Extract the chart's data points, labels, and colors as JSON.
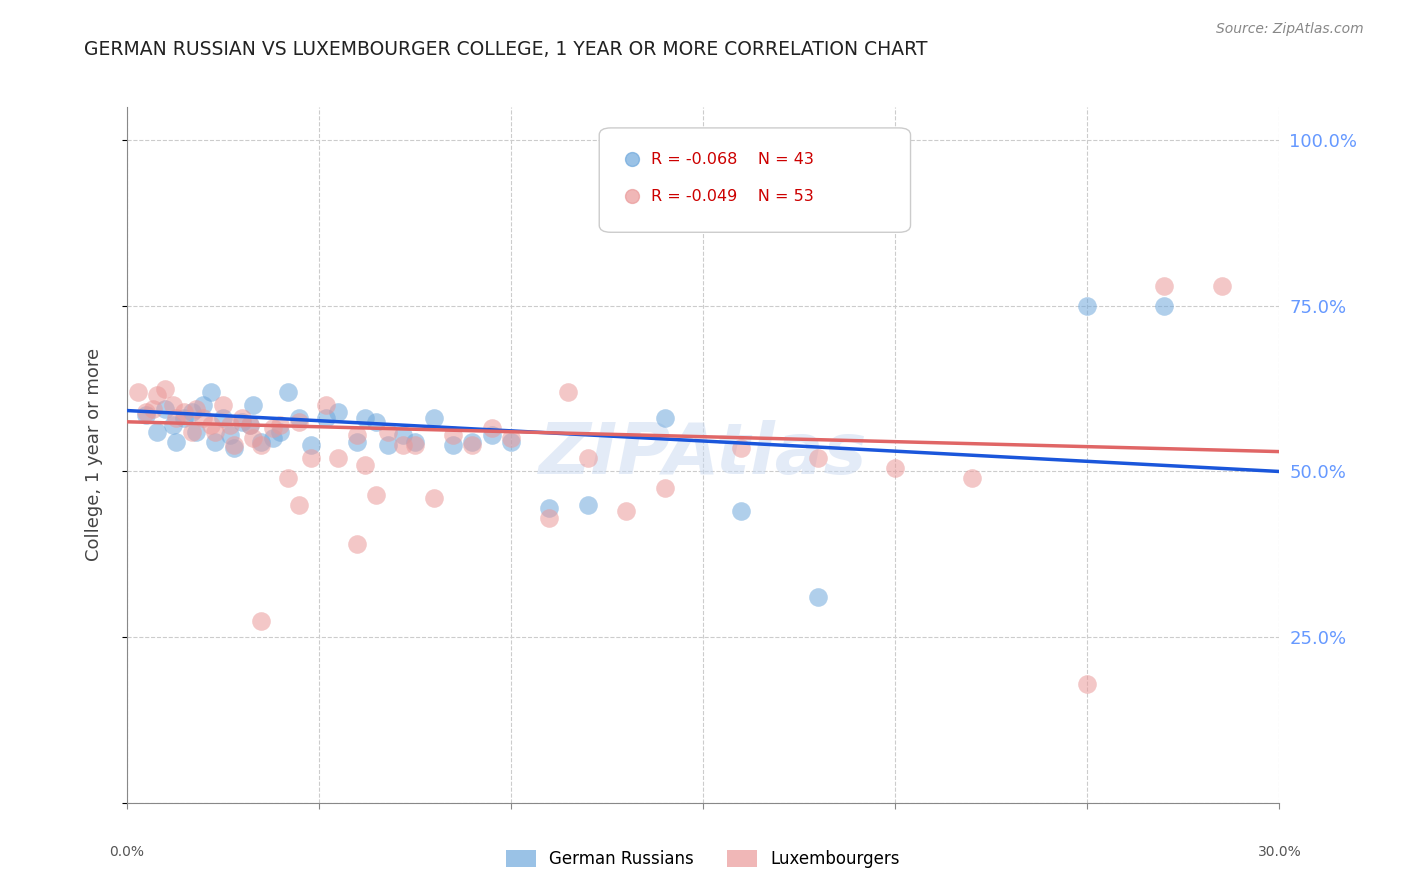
{
  "title": "GERMAN RUSSIAN VS LUXEMBOURGER COLLEGE, 1 YEAR OR MORE CORRELATION CHART",
  "source": "Source: ZipAtlas.com",
  "ylabel": "College, 1 year or more",
  "xmin": 0.0,
  "xmax": 0.3,
  "ymin": 0.0,
  "ymax": 1.05,
  "ytick_labels": [
    "",
    "25.0%",
    "50.0%",
    "75.0%",
    "100.0%"
  ],
  "ytick_values": [
    0.0,
    0.25,
    0.5,
    0.75,
    1.0
  ],
  "xtick_labels": [
    "0.0%",
    "",
    "",
    "",
    "",
    "",
    "30.0%"
  ],
  "xtick_values": [
    0.0,
    0.05,
    0.1,
    0.15,
    0.2,
    0.25,
    0.3
  ],
  "legend_blue_label": "German Russians",
  "legend_pink_label": "Luxembourgers",
  "legend_blue_R": "R = -0.068",
  "legend_blue_N": "N = 43",
  "legend_pink_R": "R = -0.049",
  "legend_pink_N": "N = 53",
  "watermark": "ZIPAtlas",
  "blue_scatter_x": [
    0.005,
    0.008,
    0.01,
    0.012,
    0.013,
    0.015,
    0.017,
    0.018,
    0.02,
    0.022,
    0.023,
    0.025,
    0.027,
    0.028,
    0.03,
    0.032,
    0.033,
    0.035,
    0.038,
    0.04,
    0.042,
    0.045,
    0.048,
    0.052,
    0.055,
    0.06,
    0.062,
    0.065,
    0.068,
    0.072,
    0.075,
    0.08,
    0.085,
    0.09,
    0.095,
    0.1,
    0.11,
    0.12,
    0.14,
    0.16,
    0.18,
    0.25,
    0.27
  ],
  "blue_scatter_y": [
    0.585,
    0.56,
    0.595,
    0.57,
    0.545,
    0.58,
    0.59,
    0.56,
    0.6,
    0.62,
    0.545,
    0.58,
    0.555,
    0.535,
    0.575,
    0.57,
    0.6,
    0.545,
    0.55,
    0.56,
    0.62,
    0.58,
    0.54,
    0.58,
    0.59,
    0.545,
    0.58,
    0.575,
    0.54,
    0.555,
    0.545,
    0.58,
    0.54,
    0.545,
    0.555,
    0.545,
    0.445,
    0.45,
    0.58,
    0.44,
    0.31,
    0.75,
    0.75
  ],
  "pink_scatter_x": [
    0.003,
    0.005,
    0.007,
    0.008,
    0.01,
    0.012,
    0.013,
    0.015,
    0.017,
    0.018,
    0.02,
    0.022,
    0.023,
    0.025,
    0.027,
    0.028,
    0.03,
    0.032,
    0.033,
    0.035,
    0.038,
    0.04,
    0.042,
    0.045,
    0.048,
    0.052,
    0.055,
    0.06,
    0.062,
    0.065,
    0.068,
    0.072,
    0.075,
    0.08,
    0.085,
    0.09,
    0.095,
    0.1,
    0.11,
    0.12,
    0.14,
    0.16,
    0.18,
    0.2,
    0.22,
    0.25,
    0.27,
    0.285,
    0.115,
    0.13,
    0.035,
    0.045,
    0.06
  ],
  "pink_scatter_y": [
    0.62,
    0.59,
    0.595,
    0.615,
    0.625,
    0.6,
    0.58,
    0.59,
    0.56,
    0.595,
    0.58,
    0.57,
    0.56,
    0.6,
    0.57,
    0.54,
    0.58,
    0.57,
    0.55,
    0.54,
    0.565,
    0.57,
    0.49,
    0.575,
    0.52,
    0.6,
    0.52,
    0.555,
    0.51,
    0.465,
    0.56,
    0.54,
    0.54,
    0.46,
    0.555,
    0.54,
    0.565,
    0.55,
    0.43,
    0.52,
    0.475,
    0.535,
    0.52,
    0.505,
    0.49,
    0.18,
    0.78,
    0.78,
    0.62,
    0.44,
    0.275,
    0.45,
    0.39
  ],
  "blue_line_x0": 0.0,
  "blue_line_x1": 0.3,
  "blue_line_y0": 0.592,
  "blue_line_y1": 0.5,
  "pink_line_x0": 0.0,
  "pink_line_x1": 0.3,
  "pink_line_y0": 0.575,
  "pink_line_y1": 0.53,
  "blue_color": "#6fa8dc",
  "pink_color": "#ea9999",
  "blue_line_color": "#1a56db",
  "pink_line_color": "#e06666",
  "background_color": "#ffffff",
  "grid_color": "#cccccc",
  "title_color": "#222222",
  "axis_label_color": "#444444",
  "right_axis_color": "#6699ff",
  "watermark_color": "#c8d8f0"
}
